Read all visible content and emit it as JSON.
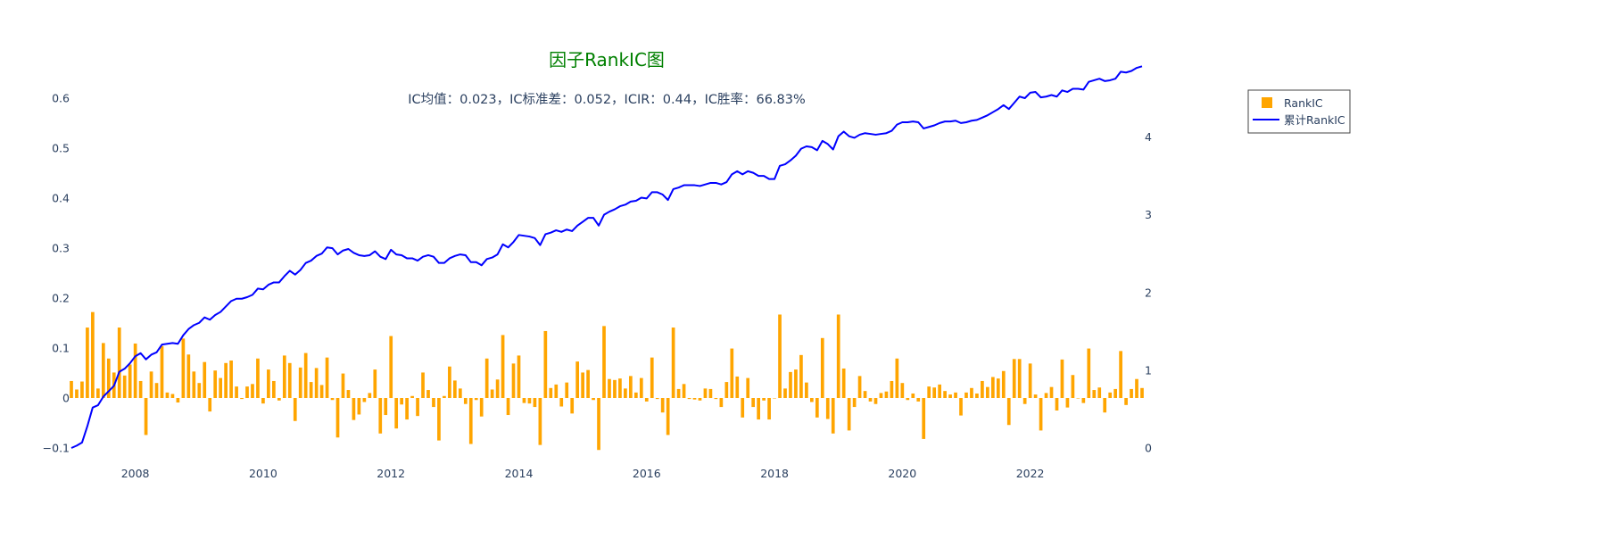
{
  "chart_data": {
    "type": "bar",
    "title": "因子RankIC图",
    "subtitle": "IC均值：0.023，IC标准差：0.052，ICIR：0.44，IC胜率：66.83%",
    "x_range": [
      "2007-01",
      "2023-10"
    ],
    "x_tick_labels": [
      "2008",
      "2010",
      "2012",
      "2014",
      "2016",
      "2018",
      "2020",
      "2022"
    ],
    "y_left": {
      "range": [
        -0.1,
        0.6
      ],
      "ticks": [
        -0.1,
        0,
        0.1,
        0.2,
        0.3,
        0.4,
        0.5,
        0.6
      ],
      "tick_labels": [
        "−0.1",
        "0",
        "0.1",
        "0.2",
        "0.3",
        "0.4",
        "0.5",
        "0.6"
      ]
    },
    "y_right": {
      "range": [
        0,
        4.5
      ],
      "ticks": [
        0,
        1,
        2,
        3,
        4
      ],
      "tick_labels": [
        "0",
        "1",
        "2",
        "3",
        "4"
      ]
    },
    "grid": false,
    "legend_placement": "top-right, outside plot",
    "series": [
      {
        "name": "RankIC",
        "kind": "bar",
        "axis": "left",
        "color": "#FFA500",
        "values": [
          0.034,
          0.017,
          0.033,
          0.141,
          0.172,
          0.019,
          0.11,
          0.079,
          0.051,
          0.141,
          0.045,
          0.067,
          0.109,
          0.034,
          -0.074,
          0.053,
          0.03,
          0.104,
          0.011,
          0.008,
          -0.009,
          0.119,
          0.087,
          0.053,
          0.03,
          0.072,
          -0.027,
          0.055,
          0.04,
          0.07,
          0.075,
          0.023,
          -0.002,
          0.023,
          0.028,
          0.079,
          -0.011,
          0.057,
          0.034,
          -0.005,
          0.085,
          0.07,
          -0.046,
          0.061,
          0.09,
          0.032,
          0.06,
          0.026,
          0.081,
          -0.004,
          -0.079,
          0.049,
          0.016,
          -0.044,
          -0.033,
          -0.008,
          0.01,
          0.057,
          -0.071,
          -0.034,
          0.124,
          -0.061,
          -0.013,
          -0.043,
          0.004,
          -0.036,
          0.051,
          0.016,
          -0.018,
          -0.085,
          0.004,
          0.063,
          0.035,
          0.019,
          -0.012,
          -0.092,
          -0.004,
          -0.037,
          0.079,
          0.017,
          0.037,
          0.126,
          -0.034,
          0.069,
          0.085,
          -0.01,
          -0.011,
          -0.018,
          -0.094,
          0.134,
          0.02,
          0.027,
          -0.017,
          0.031,
          -0.031,
          0.073,
          0.051,
          0.056,
          -0.004,
          -0.104,
          0.144,
          0.038,
          0.036,
          0.039,
          0.019,
          0.044,
          0.011,
          0.04,
          -0.007,
          0.081,
          -0.002,
          -0.029,
          -0.074,
          0.141,
          0.018,
          0.028,
          -0.002,
          -0.003,
          -0.005,
          0.019,
          0.018,
          -0.002,
          -0.018,
          0.032,
          0.099,
          0.043,
          -0.039,
          0.04,
          -0.018,
          -0.043,
          -0.005,
          -0.043,
          0.0,
          0.167,
          0.019,
          0.052,
          0.057,
          0.086,
          0.031,
          -0.008,
          -0.039,
          0.12,
          -0.042,
          -0.071,
          0.167,
          0.059,
          -0.065,
          -0.018,
          0.044,
          0.014,
          -0.007,
          -0.012,
          0.01,
          0.013,
          0.034,
          0.079,
          0.03,
          -0.004,
          0.009,
          -0.007,
          -0.082,
          0.023,
          0.021,
          0.027,
          0.014,
          0.007,
          0.011,
          -0.035,
          0.011,
          0.02,
          0.009,
          0.034,
          0.022,
          0.042,
          0.039,
          0.054,
          -0.054,
          0.078,
          0.078,
          -0.012,
          0.069,
          0.007,
          -0.065,
          0.01,
          0.022,
          -0.025,
          0.077,
          -0.019,
          0.046,
          0.0,
          -0.01,
          0.099,
          0.016,
          0.021,
          -0.029,
          0.011,
          0.018,
          0.094,
          -0.014,
          0.018,
          0.038,
          0.02
        ]
      },
      {
        "name": "累计RankIC",
        "kind": "line",
        "axis": "right",
        "color": "#0000FF",
        "values": [
          0.0,
          0.03,
          0.07,
          0.28,
          0.52,
          0.55,
          0.66,
          0.73,
          0.8,
          0.98,
          1.02,
          1.09,
          1.18,
          1.22,
          1.14,
          1.2,
          1.23,
          1.33,
          1.34,
          1.35,
          1.34,
          1.45,
          1.53,
          1.58,
          1.61,
          1.68,
          1.65,
          1.71,
          1.75,
          1.82,
          1.89,
          1.92,
          1.92,
          1.94,
          1.97,
          2.05,
          2.04,
          2.1,
          2.13,
          2.13,
          2.21,
          2.28,
          2.23,
          2.29,
          2.38,
          2.41,
          2.47,
          2.5,
          2.58,
          2.57,
          2.49,
          2.54,
          2.56,
          2.51,
          2.48,
          2.47,
          2.48,
          2.53,
          2.46,
          2.43,
          2.55,
          2.49,
          2.48,
          2.44,
          2.44,
          2.41,
          2.46,
          2.48,
          2.46,
          2.38,
          2.38,
          2.44,
          2.47,
          2.49,
          2.48,
          2.39,
          2.39,
          2.35,
          2.43,
          2.45,
          2.49,
          2.62,
          2.58,
          2.65,
          2.74,
          2.73,
          2.72,
          2.7,
          2.61,
          2.75,
          2.77,
          2.8,
          2.78,
          2.81,
          2.79,
          2.86,
          2.91,
          2.96,
          2.96,
          2.86,
          3.0,
          3.04,
          3.07,
          3.11,
          3.13,
          3.17,
          3.18,
          3.22,
          3.21,
          3.29,
          3.29,
          3.26,
          3.19,
          3.33,
          3.35,
          3.38,
          3.38,
          3.38,
          3.37,
          3.39,
          3.41,
          3.41,
          3.39,
          3.42,
          3.52,
          3.56,
          3.52,
          3.56,
          3.54,
          3.5,
          3.5,
          3.46,
          3.46,
          3.63,
          3.65,
          3.7,
          3.76,
          3.85,
          3.88,
          3.87,
          3.83,
          3.95,
          3.91,
          3.84,
          4.01,
          4.07,
          4.01,
          3.99,
          4.03,
          4.05,
          4.04,
          4.03,
          4.04,
          4.05,
          4.08,
          4.16,
          4.19,
          4.19,
          4.2,
          4.19,
          4.11,
          4.13,
          4.15,
          4.18,
          4.2,
          4.2,
          4.21,
          4.18,
          4.19,
          4.21,
          4.22,
          4.25,
          4.28,
          4.32,
          4.36,
          4.41,
          4.36,
          4.44,
          4.52,
          4.5,
          4.57,
          4.58,
          4.51,
          4.52,
          4.54,
          4.52,
          4.6,
          4.58,
          4.62,
          4.62,
          4.61,
          4.71,
          4.73,
          4.75,
          4.72,
          4.73,
          4.75,
          4.84,
          4.83,
          4.85,
          4.89,
          4.91
        ]
      }
    ]
  }
}
